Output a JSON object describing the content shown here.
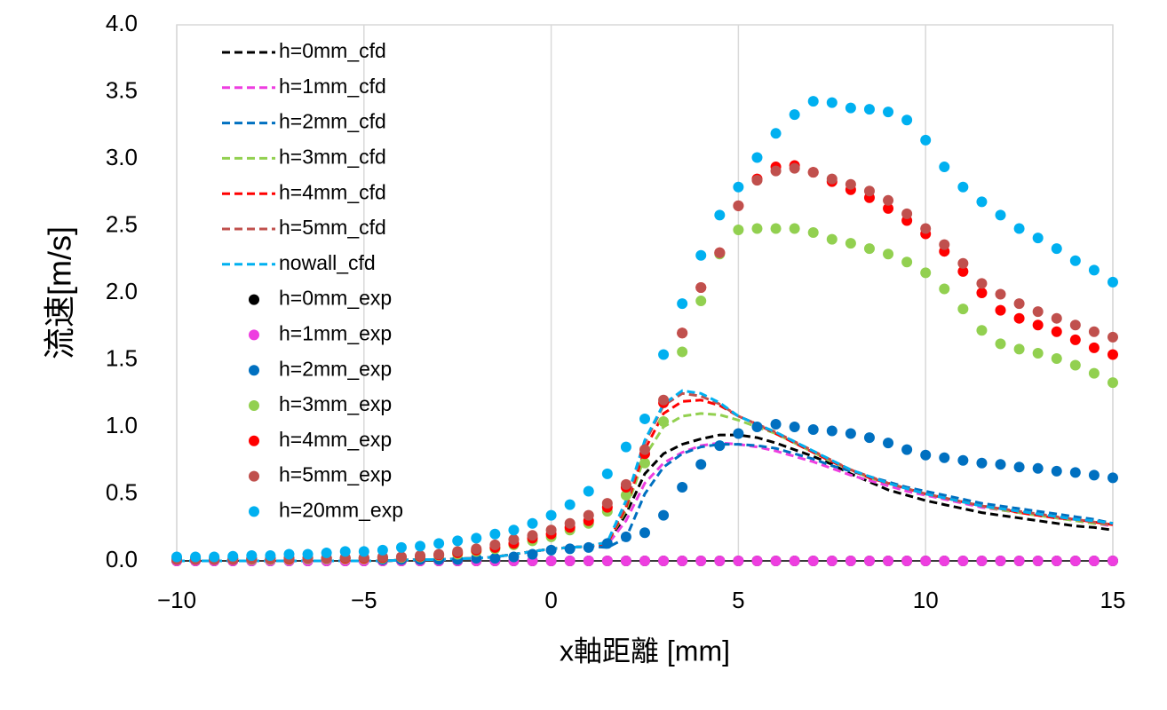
{
  "chart_data": {
    "type": "line",
    "x_label": "x軸距離 [mm]",
    "y_label": "流速[m/s]",
    "x": [
      -10,
      -9.5,
      -9,
      -8.5,
      -8,
      -7.5,
      -7,
      -6.5,
      -6,
      -5.5,
      -5,
      -4.5,
      -4,
      -3.5,
      -3,
      -2.5,
      -2,
      -1.5,
      -1,
      -0.5,
      0,
      0.5,
      1,
      1.5,
      2,
      2.5,
      3,
      3.5,
      4,
      4.5,
      5,
      5.5,
      6,
      6.5,
      7,
      7.5,
      8,
      8.5,
      9,
      9.5,
      10,
      10.5,
      11,
      11.5,
      12,
      12.5,
      13,
      13.5,
      14,
      14.5,
      15
    ],
    "xlim": [
      -10,
      15
    ],
    "xticks": [
      {
        "value": -10,
        "label": "−10"
      },
      {
        "value": -5,
        "label": "−5"
      },
      0,
      5,
      10,
      15
    ],
    "ylim": [
      0,
      4
    ],
    "yticks": [
      {
        "value": 0,
        "label": "0.0"
      },
      {
        "value": 0.5,
        "label": "0.5"
      },
      {
        "value": 1,
        "label": "1.0"
      },
      {
        "value": 1.5,
        "label": "1.5"
      },
      {
        "value": 2,
        "label": "2.0"
      },
      {
        "value": 2.5,
        "label": "2.5"
      },
      {
        "value": 3,
        "label": "3.0"
      },
      {
        "value": 3.5,
        "label": "3.5"
      },
      {
        "value": 4,
        "label": "4.0"
      }
    ],
    "grid": "x",
    "legend": "top-left",
    "series": [
      {
        "name": "h=0mm_cfd",
        "type": "line",
        "dashed": true,
        "color": "#000000",
        "values": [
          0,
          0,
          0,
          0,
          0,
          0,
          0,
          0,
          0,
          0,
          0,
          0,
          0.005,
          0.01,
          0.01,
          0.015,
          0.02,
          0.03,
          0.05,
          0.07,
          0.09,
          0.1,
          0.11,
          0.12,
          0.35,
          0.65,
          0.8,
          0.87,
          0.91,
          0.94,
          0.94,
          0.92,
          0.88,
          0.83,
          0.78,
          0.72,
          0.65,
          0.59,
          0.53,
          0.49,
          0.45,
          0.42,
          0.39,
          0.36,
          0.34,
          0.32,
          0.3,
          0.28,
          0.26,
          0.25,
          0.23
        ]
      },
      {
        "name": "h=1mm_cfd",
        "type": "line",
        "dashed": true,
        "color": "#ee3ee0",
        "values": [
          0,
          0,
          0,
          0,
          0,
          0,
          0,
          0,
          0,
          0,
          0,
          0,
          0.005,
          0.01,
          0.01,
          0.015,
          0.02,
          0.03,
          0.05,
          0.07,
          0.09,
          0.1,
          0.11,
          0.12,
          0.3,
          0.58,
          0.73,
          0.81,
          0.86,
          0.88,
          0.87,
          0.85,
          0.82,
          0.78,
          0.74,
          0.69,
          0.64,
          0.6,
          0.56,
          0.52,
          0.49,
          0.46,
          0.43,
          0.4,
          0.38,
          0.36,
          0.34,
          0.32,
          0.3,
          0.28,
          0.26
        ]
      },
      {
        "name": "h=2mm_cfd",
        "type": "line",
        "dashed": true,
        "color": "#0070c0",
        "values": [
          0,
          0,
          0,
          0,
          0,
          0,
          0,
          0,
          0,
          0,
          0,
          0,
          0.005,
          0.01,
          0.01,
          0.015,
          0.02,
          0.03,
          0.05,
          0.07,
          0.09,
          0.1,
          0.11,
          0.1,
          0.17,
          0.5,
          0.7,
          0.8,
          0.85,
          0.87,
          0.87,
          0.86,
          0.84,
          0.8,
          0.76,
          0.71,
          0.67,
          0.63,
          0.59,
          0.55,
          0.52,
          0.49,
          0.46,
          0.43,
          0.41,
          0.39,
          0.37,
          0.35,
          0.33,
          0.31,
          0.28
        ]
      },
      {
        "name": "h=3mm_cfd",
        "type": "line",
        "dashed": true,
        "color": "#92d050",
        "values": [
          0,
          0,
          0,
          0,
          0,
          0,
          0,
          0,
          0,
          0,
          0,
          0,
          0.005,
          0.01,
          0.01,
          0.015,
          0.02,
          0.03,
          0.05,
          0.07,
          0.09,
          0.1,
          0.11,
          0.13,
          0.38,
          0.78,
          1.0,
          1.08,
          1.1,
          1.09,
          1.05,
          1.0,
          0.95,
          0.88,
          0.81,
          0.74,
          0.68,
          0.62,
          0.58,
          0.54,
          0.5,
          0.47,
          0.44,
          0.41,
          0.38,
          0.36,
          0.34,
          0.32,
          0.3,
          0.28,
          0.27
        ]
      },
      {
        "name": "h=4mm_cfd",
        "type": "line",
        "dashed": true,
        "color": "#ff0000",
        "values": [
          0,
          0,
          0,
          0,
          0,
          0,
          0,
          0,
          0,
          0,
          0,
          0,
          0.005,
          0.01,
          0.01,
          0.015,
          0.02,
          0.03,
          0.05,
          0.07,
          0.09,
          0.1,
          0.11,
          0.13,
          0.4,
          0.83,
          1.1,
          1.19,
          1.2,
          1.16,
          1.08,
          1.02,
          0.95,
          0.88,
          0.81,
          0.74,
          0.68,
          0.62,
          0.58,
          0.54,
          0.5,
          0.47,
          0.44,
          0.41,
          0.39,
          0.36,
          0.34,
          0.32,
          0.31,
          0.29,
          0.27
        ]
      },
      {
        "name": "h=5mm_cfd",
        "type": "line",
        "dashed": true,
        "color": "#c0504d",
        "values": [
          0,
          0,
          0,
          0,
          0,
          0,
          0,
          0,
          0,
          0,
          0,
          0,
          0.005,
          0.01,
          0.01,
          0.015,
          0.02,
          0.03,
          0.05,
          0.07,
          0.09,
          0.1,
          0.11,
          0.14,
          0.42,
          0.88,
          1.16,
          1.25,
          1.23,
          1.17,
          1.08,
          1.02,
          0.96,
          0.89,
          0.82,
          0.75,
          0.68,
          0.63,
          0.58,
          0.54,
          0.5,
          0.47,
          0.44,
          0.41,
          0.39,
          0.37,
          0.35,
          0.33,
          0.31,
          0.29,
          0.27
        ]
      },
      {
        "name": "nowall_cfd",
        "type": "line",
        "dashed": true,
        "color": "#00b0f0",
        "values": [
          0,
          0,
          0,
          0,
          0,
          0,
          0,
          0,
          0,
          0,
          0,
          0,
          0.005,
          0.01,
          0.01,
          0.015,
          0.02,
          0.03,
          0.05,
          0.07,
          0.09,
          0.1,
          0.11,
          0.14,
          0.45,
          0.9,
          1.17,
          1.27,
          1.25,
          1.18,
          1.08,
          1.02,
          0.96,
          0.89,
          0.82,
          0.75,
          0.68,
          0.63,
          0.58,
          0.54,
          0.5,
          0.47,
          0.44,
          0.41,
          0.39,
          0.37,
          0.35,
          0.33,
          0.31,
          0.3,
          0.28
        ]
      },
      {
        "name": "h=0mm_exp",
        "type": "scatter",
        "color": "#000000",
        "values": [
          0,
          0,
          0,
          0,
          0,
          0,
          0,
          0,
          0,
          0,
          0,
          0,
          0,
          0,
          0,
          0,
          0,
          0,
          0,
          0,
          0,
          0,
          0,
          0,
          0,
          0,
          0,
          0,
          0,
          0,
          0,
          0,
          0,
          0,
          0,
          0,
          0,
          0,
          0,
          0,
          0,
          0,
          0,
          0,
          0,
          0,
          0,
          0,
          0,
          0,
          0
        ]
      },
      {
        "name": "h=1mm_exp",
        "type": "scatter",
        "color": "#ee3ee0",
        "values": [
          0,
          0,
          0,
          0,
          0,
          0,
          0,
          0,
          0,
          0,
          0,
          0,
          0,
          0,
          0,
          0,
          0,
          0,
          0,
          0,
          0,
          0,
          0,
          0,
          0,
          0,
          0,
          0,
          0,
          0,
          0,
          0,
          0,
          0,
          0,
          0,
          0,
          0,
          0,
          0,
          0,
          0,
          0,
          0,
          0,
          0,
          0,
          0,
          0,
          0,
          0
        ]
      },
      {
        "name": "h=2mm_exp",
        "type": "scatter",
        "color": "#0070c0",
        "values": [
          0.02,
          0.02,
          0.02,
          0.02,
          0.02,
          0.02,
          0.02,
          0.02,
          0.02,
          0.02,
          0.02,
          0.01,
          0.01,
          0.01,
          0.01,
          0.01,
          0.02,
          0.02,
          0.03,
          0.05,
          0.08,
          0.09,
          0.1,
          0.13,
          0.18,
          0.21,
          0.34,
          0.55,
          0.72,
          0.86,
          0.95,
          1.0,
          1.02,
          1.0,
          0.98,
          0.97,
          0.95,
          0.92,
          0.88,
          0.83,
          0.79,
          0.77,
          0.75,
          0.73,
          0.72,
          0.7,
          0.69,
          0.67,
          0.66,
          0.64,
          0.62
        ]
      },
      {
        "name": "h=3mm_exp",
        "type": "scatter",
        "color": "#92d050",
        "values": [
          0.01,
          0.01,
          0.01,
          0.01,
          0.01,
          0.01,
          0.01,
          0.015,
          0.015,
          0.015,
          0.015,
          0.02,
          0.025,
          0.03,
          0.04,
          0.05,
          0.07,
          0.09,
          0.12,
          0.15,
          0.18,
          0.23,
          0.28,
          0.37,
          0.49,
          0.73,
          1.04,
          1.56,
          1.94,
          2.29,
          2.47,
          2.48,
          2.48,
          2.48,
          2.45,
          2.4,
          2.37,
          2.33,
          2.29,
          2.23,
          2.15,
          2.03,
          1.88,
          1.72,
          1.62,
          1.58,
          1.55,
          1.51,
          1.46,
          1.4,
          1.33
        ]
      },
      {
        "name": "h=4mm_exp",
        "type": "scatter",
        "color": "#ff0000",
        "values": [
          0.01,
          0.01,
          0.01,
          0.01,
          0.015,
          0.015,
          0.015,
          0.02,
          0.02,
          0.02,
          0.02,
          0.025,
          0.03,
          0.035,
          0.045,
          0.06,
          0.08,
          0.1,
          0.13,
          0.17,
          0.2,
          0.25,
          0.3,
          0.4,
          0.55,
          0.8,
          1.18,
          1.7,
          2.04,
          2.3,
          2.65,
          2.85,
          2.94,
          2.95,
          2.9,
          2.83,
          2.77,
          2.71,
          2.63,
          2.54,
          2.44,
          2.31,
          2.16,
          2.0,
          1.87,
          1.81,
          1.76,
          1.71,
          1.65,
          1.59,
          1.54
        ]
      },
      {
        "name": "h=5mm_exp",
        "type": "scatter",
        "color": "#c0504d",
        "values": [
          0.01,
          0.01,
          0.01,
          0.01,
          0.015,
          0.015,
          0.02,
          0.02,
          0.02,
          0.025,
          0.025,
          0.03,
          0.03,
          0.04,
          0.05,
          0.07,
          0.09,
          0.12,
          0.16,
          0.19,
          0.23,
          0.28,
          0.34,
          0.43,
          0.57,
          0.83,
          1.2,
          1.7,
          2.04,
          2.3,
          2.65,
          2.84,
          2.91,
          2.93,
          2.9,
          2.85,
          2.81,
          2.76,
          2.69,
          2.59,
          2.48,
          2.36,
          2.22,
          2.07,
          1.99,
          1.92,
          1.86,
          1.81,
          1.76,
          1.71,
          1.67
        ]
      },
      {
        "name": "h=20mm_exp",
        "type": "scatter",
        "color": "#00b0f0",
        "values": [
          0.03,
          0.03,
          0.03,
          0.035,
          0.04,
          0.04,
          0.05,
          0.05,
          0.06,
          0.07,
          0.07,
          0.08,
          0.1,
          0.11,
          0.13,
          0.15,
          0.17,
          0.2,
          0.23,
          0.28,
          0.34,
          0.42,
          0.52,
          0.65,
          0.85,
          1.06,
          1.54,
          1.92,
          2.28,
          2.58,
          2.79,
          3.01,
          3.19,
          3.33,
          3.43,
          3.42,
          3.38,
          3.37,
          3.35,
          3.29,
          3.14,
          2.94,
          2.79,
          2.68,
          2.58,
          2.48,
          2.41,
          2.33,
          2.24,
          2.17,
          2.08
        ]
      }
    ]
  }
}
